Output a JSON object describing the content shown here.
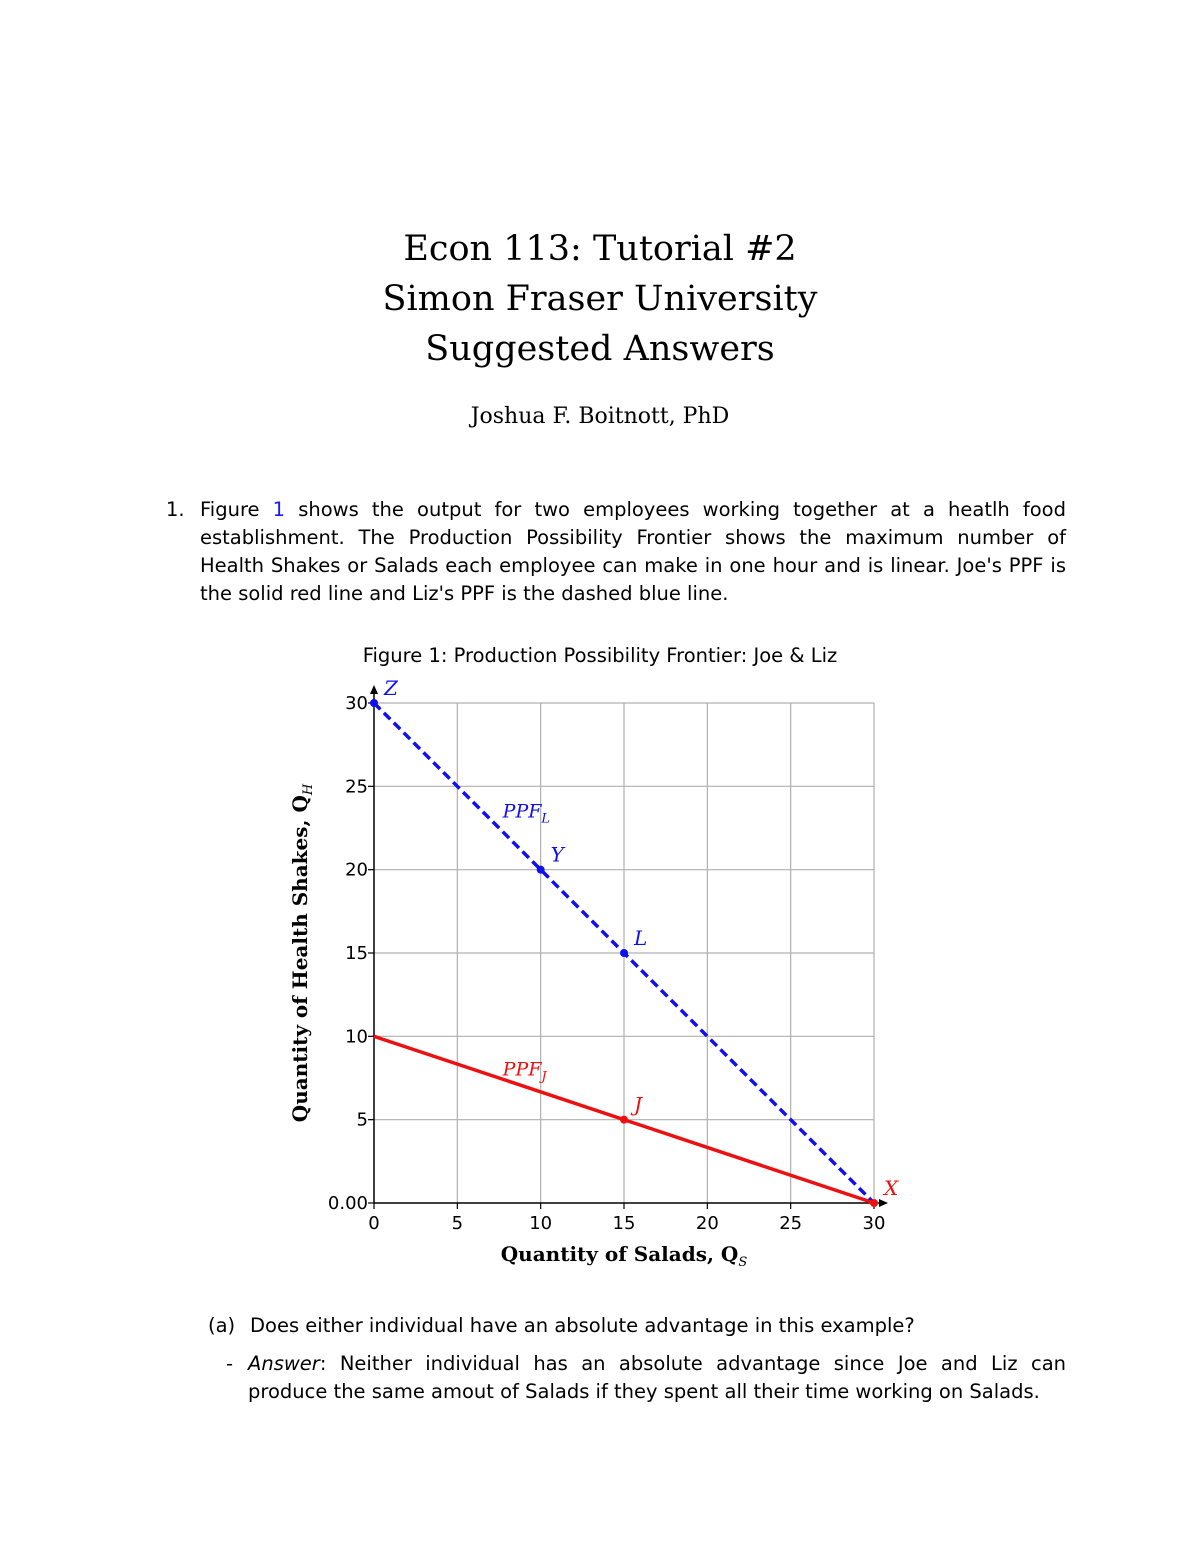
{
  "header": {
    "title": "Econ 113: Tutorial #2",
    "subtitle": "Simon Fraser University",
    "subtitle2": "Suggested Answers",
    "author": "Joshua F. Boitnott, PhD"
  },
  "question1": {
    "number": "1.",
    "text_before_link": "Figure ",
    "link": "1",
    "text_after_link": " shows the output for two employees working together at a heatlh food establishment. The Production Possibility Frontier shows the maximum number of Health Shakes or Salads each employee can make in one hour and is linear. Joe's PPF is the solid red line and Liz's PPF is the dashed blue line."
  },
  "figure": {
    "caption": "Figure 1: Production Possibility Frontier: Joe & Liz"
  },
  "chart_data": {
    "type": "line",
    "title": "Figure 1: Production Possibility Frontier: Joe & Liz",
    "xlabel": "Quantity of Salads, Q",
    "xlabel_sub": "S",
    "ylabel": "Quantity of Health Shakes, Q",
    "ylabel_sub": "H",
    "xlim": [
      0,
      30
    ],
    "ylim": [
      0,
      30
    ],
    "grid": true,
    "x_ticks": [
      "0",
      "5",
      "10",
      "15",
      "20",
      "25",
      "30"
    ],
    "x_tick_values": [
      0,
      5,
      10,
      15,
      20,
      25,
      30
    ],
    "y_ticks": [
      "0.00",
      "5",
      "10",
      "15",
      "20",
      "25",
      "30"
    ],
    "y_tick_values": [
      0,
      5,
      10,
      15,
      20,
      25,
      30
    ],
    "series": [
      {
        "name": "PPF",
        "name_sub": "L",
        "color": "#1010ee",
        "style": "dashed",
        "points": [
          [
            0,
            30
          ],
          [
            30,
            0
          ]
        ]
      },
      {
        "name": "PPF",
        "name_sub": "J",
        "color": "#ee1010",
        "style": "solid",
        "points": [
          [
            0,
            10
          ],
          [
            30,
            0
          ]
        ]
      }
    ],
    "labeled_points": [
      {
        "label": "Z",
        "x": 0,
        "y": 30,
        "color": "#1010ee"
      },
      {
        "label": "Y",
        "x": 10,
        "y": 20,
        "color": "#1010ee"
      },
      {
        "label": "L",
        "x": 15,
        "y": 15,
        "color": "#1010ee"
      },
      {
        "label": "J",
        "x": 15,
        "y": 5,
        "color": "#ee1010"
      },
      {
        "label": "X",
        "x": 30,
        "y": 0,
        "color": "#ee1010"
      }
    ]
  },
  "subquestion_a": {
    "label": "(a)",
    "text": "Does either individual have an absolute advantage in this example?"
  },
  "answer_a": {
    "dash": "-",
    "answer_label": "Answer",
    "text": ": Neither individual has an absolute advantage since Joe and Liz can produce the same amout of Salads if they spent all their time working on Salads."
  }
}
